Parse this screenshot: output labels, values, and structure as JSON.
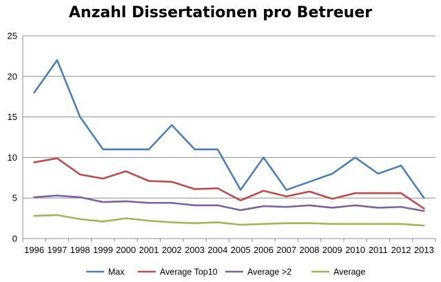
{
  "chart_data": {
    "type": "line",
    "title": "Anzahl Dissertationen pro Betreuer",
    "xlabel": "",
    "ylabel": "",
    "ylim": [
      0,
      25
    ],
    "yticks": [
      0,
      5,
      10,
      15,
      20,
      25
    ],
    "grid": true,
    "legend_position": "bottom",
    "categories": [
      "1996",
      "1997",
      "1998",
      "1999",
      "2000",
      "2001",
      "2002",
      "2003",
      "2004",
      "2005",
      "2006",
      "2007",
      "2008",
      "2009",
      "2010",
      "2011",
      "2012",
      "2013"
    ],
    "series": [
      {
        "name": "Max",
        "color": "#4a7ebb",
        "values": [
          18,
          22,
          15,
          11,
          11,
          11,
          14,
          11,
          11,
          6,
          10,
          6,
          7,
          8,
          10,
          8,
          9,
          5
        ]
      },
      {
        "name": "Average Top10",
        "color": "#be4b48",
        "values": [
          9.4,
          9.9,
          7.9,
          7.4,
          8.3,
          7.1,
          7.0,
          6.1,
          6.2,
          4.7,
          5.9,
          5.2,
          5.8,
          4.9,
          5.6,
          5.6,
          5.6,
          3.7
        ]
      },
      {
        "name": "Average >2",
        "color": "#7d60a0",
        "values": [
          5.1,
          5.3,
          5.1,
          4.5,
          4.6,
          4.4,
          4.4,
          4.1,
          4.1,
          3.5,
          4.0,
          3.9,
          4.1,
          3.8,
          4.1,
          3.8,
          3.9,
          3.4
        ]
      },
      {
        "name": "Average",
        "color": "#98b954",
        "values": [
          2.8,
          2.9,
          2.4,
          2.1,
          2.5,
          2.2,
          2.0,
          1.9,
          2.0,
          1.7,
          1.8,
          1.9,
          1.9,
          1.8,
          1.8,
          1.8,
          1.8,
          1.6
        ]
      }
    ]
  }
}
